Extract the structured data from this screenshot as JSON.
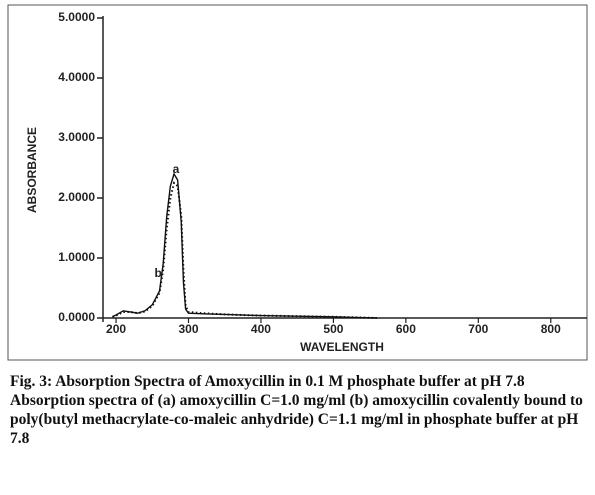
{
  "chart_data": {
    "type": "line",
    "xlabel": "WAVELENGTH",
    "ylabel": "ABSORBANCE",
    "x": [
      195,
      200,
      210,
      220,
      230,
      240,
      250,
      260,
      265,
      270,
      275,
      280,
      285,
      290,
      293,
      296,
      300,
      320,
      350,
      400,
      450,
      500,
      530,
      560
    ],
    "series": [
      {
        "name": "a",
        "color": "#111111",
        "style": "solid",
        "values": [
          0.02,
          0.05,
          0.12,
          0.1,
          0.08,
          0.12,
          0.22,
          0.45,
          0.9,
          1.7,
          2.2,
          2.4,
          2.3,
          1.6,
          0.6,
          0.15,
          0.08,
          0.07,
          0.06,
          0.04,
          0.03,
          0.02,
          0.01,
          0.0
        ]
      },
      {
        "name": "b",
        "color": "#111111",
        "style": "dotted",
        "values": [
          0.02,
          0.04,
          0.1,
          0.1,
          0.08,
          0.11,
          0.2,
          0.42,
          0.8,
          1.5,
          2.0,
          2.25,
          2.2,
          1.7,
          0.8,
          0.2,
          0.1,
          0.08,
          0.06,
          0.04,
          0.03,
          0.02,
          0.01,
          0.0
        ]
      }
    ],
    "xlim": [
      182,
      850
    ],
    "ylim": [
      0,
      5
    ],
    "xticks": [
      200,
      300,
      400,
      500,
      600,
      700,
      800
    ],
    "yticks": [
      {
        "value": 0,
        "label": "0.0000"
      },
      {
        "value": 1,
        "label": "1.0000"
      },
      {
        "value": 2,
        "label": "2.0000"
      },
      {
        "value": 3,
        "label": "3.0000"
      },
      {
        "value": 4,
        "label": "4.0000"
      },
      {
        "value": 5,
        "label": "5.0000"
      }
    ]
  },
  "caption": {
    "title": "Fig. 3: Absorption Spectra of Amoxycillin in 0.1 M phosphate buffer at pH 7.8",
    "text": "Absorption spectra of (a) amoxycillin C=1.0 mg/ml (b) amoxycillin covalently bound to poly(butyl methacrylate-co-maleic anhydride) C=1.1 mg/ml in phosphate buffer at pH 7.8"
  }
}
